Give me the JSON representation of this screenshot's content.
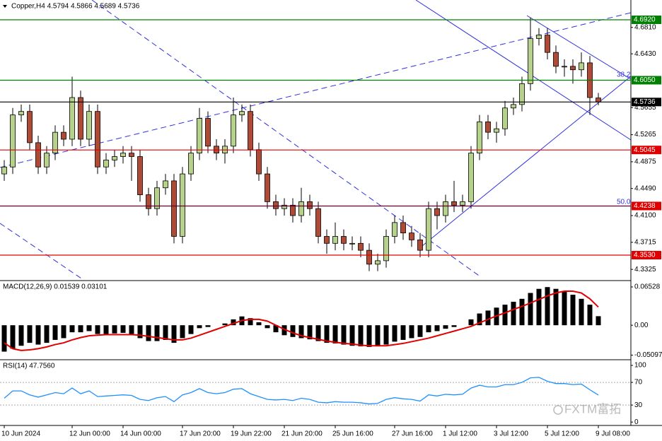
{
  "chart_data": [
    {
      "type": "candlestick",
      "title": "Copper,H4  4.5794 4.5866 4.5689 4.5736",
      "categories": [
        "10 Jun 2024",
        null,
        null,
        null,
        null,
        null,
        null,
        null,
        "12 Jun 00:00",
        null,
        null,
        null,
        null,
        null,
        "14 Jun 00:00",
        null,
        null,
        null,
        null,
        null,
        null,
        "17 Jun 20:00",
        null,
        null,
        null,
        null,
        null,
        "19 Jun 22:00",
        null,
        null,
        null,
        null,
        null,
        "21 Jun 20:00",
        null,
        null,
        null,
        null,
        null,
        "25 Jun 16:00",
        null,
        null,
        null,
        null,
        null,
        null,
        "27 Jun 16:00",
        null,
        null,
        null,
        null,
        null,
        "1 Jul 12:00",
        null,
        null,
        null,
        null,
        null,
        "3 Jul 12:00",
        null,
        null,
        null,
        null,
        null,
        "5 Jul 12:00",
        null,
        null,
        null,
        null,
        null,
        "9 Jul 08:00"
      ],
      "open": [
        4.47,
        4.48,
        4.555,
        4.56,
        4.515,
        4.48,
        4.5,
        4.53,
        4.52,
        4.58,
        4.52,
        4.56,
        4.48,
        4.49,
        4.495,
        4.5,
        4.495,
        4.44,
        4.42,
        4.45,
        4.46,
        4.38,
        4.47,
        4.5,
        4.55,
        4.51,
        4.5,
        4.51,
        4.555,
        4.56,
        4.505,
        4.47,
        4.43,
        4.42,
        4.425,
        4.41,
        4.43,
        4.42,
        4.38,
        4.37,
        4.38,
        4.37,
        4.37,
        4.36,
        4.34,
        4.345,
        4.38,
        4.4,
        4.385,
        4.375,
        4.36,
        4.42,
        4.41,
        4.43,
        4.425,
        4.43,
        4.5,
        4.545,
        4.53,
        4.535,
        4.565,
        4.57,
        4.6,
        4.665,
        4.67,
        4.645,
        4.625,
        4.625,
        4.62,
        4.63,
        4.5794
      ],
      "high": [
        4.49,
        4.565,
        4.57,
        4.57,
        4.525,
        4.51,
        4.54,
        4.54,
        4.61,
        4.59,
        4.57,
        4.57,
        4.5,
        4.505,
        4.51,
        4.51,
        4.505,
        4.45,
        4.46,
        4.47,
        4.47,
        4.48,
        4.51,
        4.565,
        4.56,
        4.52,
        4.52,
        4.58,
        4.57,
        4.57,
        4.515,
        4.48,
        4.44,
        4.435,
        4.435,
        4.45,
        4.44,
        4.43,
        4.39,
        4.4,
        4.39,
        4.38,
        4.38,
        4.37,
        4.355,
        4.39,
        4.41,
        4.41,
        4.395,
        4.385,
        4.43,
        4.43,
        4.44,
        4.46,
        4.44,
        4.51,
        4.555,
        4.555,
        4.545,
        4.575,
        4.58,
        4.61,
        4.695,
        4.68,
        4.68,
        4.655,
        4.635,
        4.635,
        4.645,
        4.64,
        4.5866
      ],
      "low": [
        4.46,
        4.47,
        4.545,
        4.505,
        4.47,
        4.47,
        4.49,
        4.51,
        4.51,
        4.51,
        4.51,
        4.47,
        4.47,
        4.48,
        4.485,
        4.46,
        4.43,
        4.41,
        4.41,
        4.44,
        4.37,
        4.37,
        4.46,
        4.49,
        4.5,
        4.49,
        4.485,
        4.5,
        4.545,
        4.495,
        4.46,
        4.42,
        4.41,
        4.41,
        4.4,
        4.4,
        4.41,
        4.37,
        4.355,
        4.36,
        4.36,
        4.36,
        4.35,
        4.33,
        4.33,
        4.335,
        4.37,
        4.375,
        4.365,
        4.35,
        4.35,
        4.39,
        4.4,
        4.415,
        4.415,
        4.42,
        4.49,
        4.52,
        4.515,
        4.525,
        4.555,
        4.56,
        4.59,
        4.655,
        4.635,
        4.615,
        4.61,
        4.6,
        4.61,
        4.555,
        4.5689
      ],
      "close": [
        4.48,
        4.555,
        4.56,
        4.515,
        4.48,
        4.5,
        4.53,
        4.52,
        4.58,
        4.52,
        4.56,
        4.48,
        4.49,
        4.495,
        4.5,
        4.495,
        4.44,
        4.42,
        4.45,
        4.46,
        4.38,
        4.47,
        4.5,
        4.55,
        4.51,
        4.5,
        4.51,
        4.555,
        4.56,
        4.505,
        4.47,
        4.43,
        4.42,
        4.425,
        4.41,
        4.43,
        4.42,
        4.38,
        4.37,
        4.38,
        4.37,
        4.37,
        4.36,
        4.34,
        4.345,
        4.38,
        4.4,
        4.385,
        4.375,
        4.36,
        4.42,
        4.41,
        4.43,
        4.425,
        4.43,
        4.5,
        4.545,
        4.53,
        4.535,
        4.565,
        4.57,
        4.6,
        4.665,
        4.67,
        4.645,
        4.625,
        4.625,
        4.62,
        4.63,
        4.58,
        4.5736
      ],
      "up_color": "#b5d18a",
      "down_color": "#b04a35",
      "ylim": [
        4.3174,
        4.7205
      ],
      "yticks": [
        {
          "value": 4.681,
          "label": "4.6810"
        },
        {
          "value": 4.643,
          "label": "4.6430"
        },
        {
          "value": 4.5655,
          "label": "4.5655"
        },
        {
          "value": 4.5265,
          "label": "4.5265"
        },
        {
          "value": 4.4875,
          "label": "4.4875"
        },
        {
          "value": 4.449,
          "label": "4.4490"
        },
        {
          "value": 4.41,
          "label": "4.4100"
        },
        {
          "value": 4.3715,
          "label": "4.3715"
        },
        {
          "value": 4.3325,
          "label": "4.3325"
        }
      ],
      "levels": [
        {
          "value": 4.692,
          "label": "4.6920",
          "color": "#008000"
        },
        {
          "value": 4.605,
          "label": "4.6050",
          "color": "#008000"
        },
        {
          "value": 4.5045,
          "label": "4.5045",
          "color": "#e00000"
        },
        {
          "value": 4.4238,
          "label": "4.4238",
          "color": "#e00000",
          "line_color": "#600030"
        },
        {
          "value": 4.353,
          "label": "4.3530",
          "color": "#e00000"
        },
        {
          "value": 4.5736,
          "label": "4.5736",
          "color": "#000000"
        }
      ],
      "annotations": [
        "38.2",
        "50.0"
      ]
    },
    {
      "type": "macd",
      "title": "MACD(12,26,9) 0.01539 0.03101",
      "ylim": [
        -0.0576,
        0.0737
      ],
      "yticks": [
        0.06528,
        {
          "value": 0,
          "label": "0.00"
        },
        -0.05097
      ],
      "series": [
        {
          "color": "#000000",
          "values": [
            -0.045,
            -0.04,
            -0.035,
            -0.03,
            -0.033,
            -0.03,
            -0.025,
            -0.022,
            -0.012,
            -0.012,
            -0.01,
            -0.015,
            -0.015,
            -0.014,
            -0.013,
            -0.015,
            -0.022,
            -0.027,
            -0.027,
            -0.025,
            -0.03,
            -0.022,
            -0.015,
            -0.005,
            -0.003,
            0,
            0.003,
            0.01,
            0.015,
            0.012,
            0.005,
            -0.005,
            -0.012,
            -0.017,
            -0.02,
            -0.022,
            -0.024,
            -0.027,
            -0.03,
            -0.031,
            -0.033,
            -0.035,
            -0.036,
            -0.037,
            -0.036,
            -0.033,
            -0.028,
            -0.025,
            -0.022,
            -0.02,
            -0.012,
            -0.01,
            -0.006,
            -0.003,
            0,
            0.01,
            0.02,
            0.025,
            0.03,
            0.035,
            0.04,
            0.045,
            0.055,
            0.062,
            0.065,
            0.062,
            0.058,
            0.052,
            0.045,
            0.035,
            0.01539
          ]
        },
        {
          "color": "#e00000",
          "values": [
            -0.03,
            -0.04,
            -0.043,
            -0.042,
            -0.04,
            -0.037,
            -0.033,
            -0.03,
            -0.025,
            -0.021,
            -0.018,
            -0.017,
            -0.016,
            -0.016,
            -0.016,
            -0.016,
            -0.017,
            -0.019,
            -0.021,
            -0.023,
            -0.025,
            -0.025,
            -0.022,
            -0.017,
            -0.012,
            -0.007,
            -0.002,
            0.003,
            0.008,
            0.01,
            0.01,
            0.007,
            0,
            -0.007,
            -0.013,
            -0.018,
            -0.021,
            -0.024,
            -0.027,
            -0.029,
            -0.031,
            -0.032,
            -0.034,
            -0.035,
            -0.035,
            -0.035,
            -0.033,
            -0.031,
            -0.028,
            -0.025,
            -0.022,
            -0.018,
            -0.014,
            -0.01,
            -0.006,
            -0.002,
            0.004,
            0.01,
            0.016,
            0.021,
            0.027,
            0.032,
            0.038,
            0.044,
            0.05,
            0.055,
            0.058,
            0.058,
            0.055,
            0.045,
            0.03101
          ]
        }
      ]
    },
    {
      "type": "line",
      "title": "RSI(14) 47.7560",
      "ylim": [
        -3.5,
        107.5
      ],
      "yticks": [
        100,
        70,
        30,
        0
      ],
      "levels": [
        70,
        30
      ],
      "series": [
        {
          "color": "#1e90ff",
          "values": [
            42,
            55,
            55,
            48,
            44,
            48,
            52,
            50,
            60,
            50,
            55,
            45,
            46,
            47,
            48,
            47,
            40,
            38,
            43,
            45,
            36,
            48,
            52,
            59,
            52,
            50,
            52,
            58,
            59,
            50,
            45,
            40,
            39,
            40,
            38,
            42,
            40,
            35,
            34,
            36,
            35,
            35,
            34,
            32,
            33,
            40,
            43,
            41,
            40,
            37,
            48,
            46,
            49,
            48,
            49,
            60,
            65,
            62,
            62,
            66,
            66,
            70,
            78,
            79,
            72,
            68,
            68,
            66,
            67,
            57,
            47.756
          ]
        }
      ]
    }
  ],
  "watermark": "FXTM富拓"
}
